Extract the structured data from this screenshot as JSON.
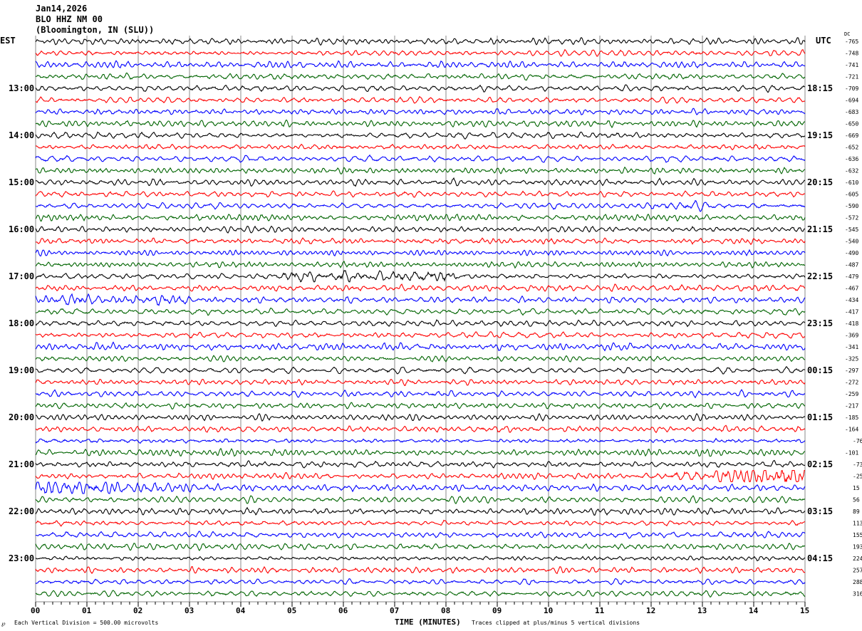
{
  "header": {
    "date": "Jan14,2026",
    "station": "BLO HHZ NM 00",
    "location": "(Bloomington, IN (SLU))"
  },
  "chart_data": {
    "type": "line",
    "title": "Jan14,2026 BLO HHZ NM 00 (Bloomington, IN (SLU))",
    "xlabel": "TIME (MINUTES)",
    "xlim": [
      0,
      15
    ],
    "x_ticks": [
      "00",
      "01",
      "02",
      "03",
      "04",
      "05",
      "06",
      "07",
      "08",
      "09",
      "10",
      "11",
      "12",
      "13",
      "14",
      "15"
    ],
    "grid": true,
    "left_axis_label": "EST",
    "right_axis_label": "UTC",
    "dc_label": "DC",
    "left_time_labels": [
      "13:00",
      "14:00",
      "15:00",
      "16:00",
      "17:00",
      "18:00",
      "19:00",
      "20:00",
      "21:00",
      "22:00",
      "23:00"
    ],
    "right_time_labels": [
      "18:15",
      "19:15",
      "20:15",
      "21:15",
      "22:15",
      "23:15",
      "00:15",
      "01:15",
      "02:15",
      "03:15",
      "04:15"
    ],
    "trace_colors": [
      "#000000",
      "#ff0000",
      "#0000ff",
      "#006400"
    ],
    "dc_offsets": [
      "-765",
      "-748",
      "-741",
      "-721",
      "-709",
      "-694",
      "-683",
      "-650",
      "-669",
      "-652",
      "-636",
      "-632",
      "-610",
      "-605",
      "-590",
      "-572",
      "-545",
      "-540",
      "-490",
      "-487",
      "-479",
      "-467",
      "-434",
      "-417",
      "-418",
      "-369",
      "-341",
      "-325",
      "-297",
      "-272",
      "-259",
      "-217",
      "-185",
      "-164",
      "-76",
      "-101",
      "-73",
      "-25",
      "15",
      "56",
      "89",
      "113",
      "155",
      "193",
      "224",
      "257",
      "288",
      "316"
    ],
    "scale_note": "Each Vertical Division =  500.00 microvolts",
    "clip_note": "Traces clipped at plus/minus 5 vertical divisions"
  },
  "footer": {
    "corner_mark": "℘"
  }
}
